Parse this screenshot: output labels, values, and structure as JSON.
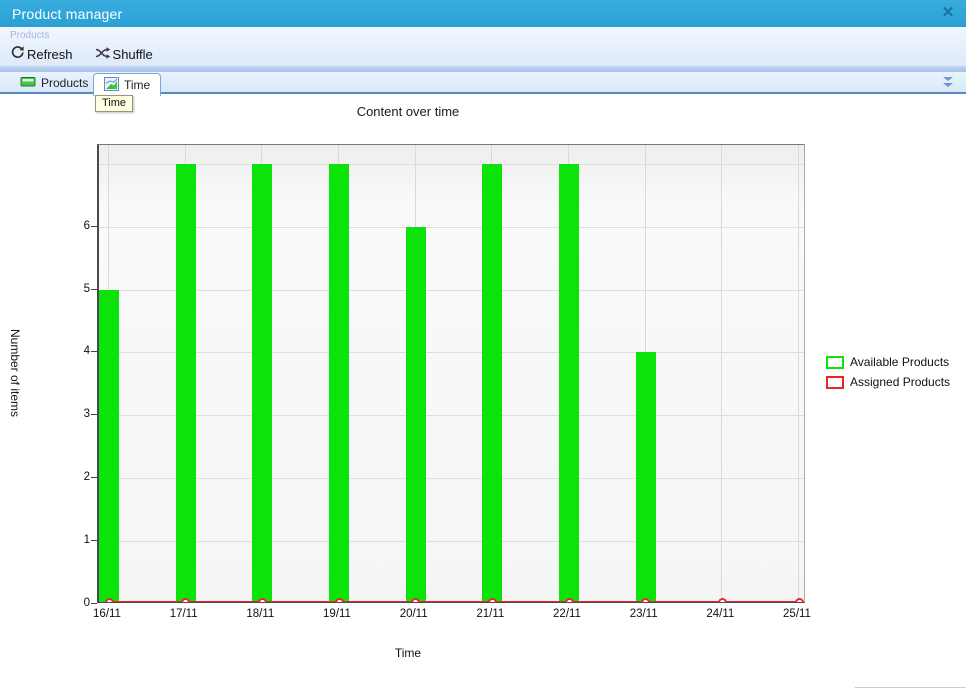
{
  "window": {
    "title": "Product manager",
    "close_glyph": "✕"
  },
  "ribbon": {
    "group_label": "Products",
    "buttons": [
      {
        "label": "Refresh"
      },
      {
        "label": "Shuffle"
      }
    ]
  },
  "tabs": [
    {
      "label": "Products",
      "active": false
    },
    {
      "label": "Time",
      "active": true
    }
  ],
  "tooltip": {
    "text": "Time"
  },
  "chart_data": {
    "type": "bar",
    "title": "Content over time",
    "xlabel": "Time",
    "ylabel": "Number of items",
    "categories": [
      "16/11",
      "17/11",
      "18/11",
      "19/11",
      "20/11",
      "21/11",
      "22/11",
      "23/11",
      "24/11",
      "25/11"
    ],
    "series": [
      {
        "name": "Available Products",
        "type": "bar",
        "color": "#0be30b",
        "values": [
          5,
          7,
          7,
          7,
          6,
          7,
          7,
          4,
          0,
          0
        ]
      },
      {
        "name": "Assigned Products",
        "type": "line",
        "color": "#f22222",
        "values": [
          0,
          0,
          0,
          0,
          0,
          0,
          0,
          0,
          0,
          0
        ]
      }
    ],
    "ylim": [
      0,
      7.3
    ],
    "yticks": [
      0,
      1,
      2,
      3,
      4,
      5,
      6
    ],
    "grid": true,
    "legend_position": "right"
  },
  "colors": {
    "titlebar": "#2fa6d9",
    "tab_underline": "#5588c4",
    "bar_green": "#0be30b",
    "line_red": "#f22222"
  }
}
